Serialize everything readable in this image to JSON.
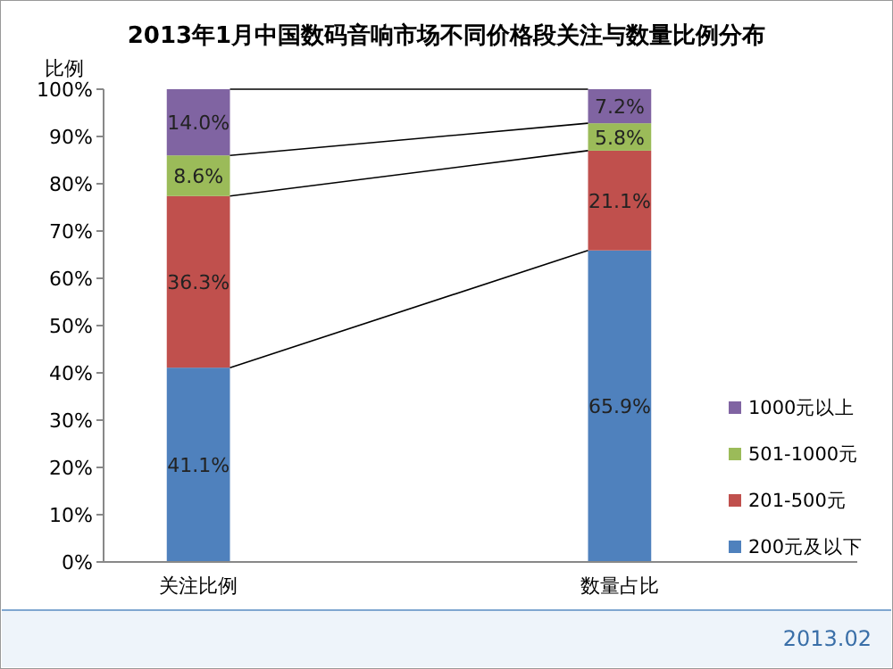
{
  "chart_data": {
    "type": "bar",
    "stacked": true,
    "title": "2013年1月中国数码音响市场不同价格段关注与数量比例分布",
    "ylabel": "比例",
    "categories": [
      "关注比例",
      "数量占比"
    ],
    "series": [
      {
        "name": "200元及以下",
        "color": "#4f81bd",
        "values": [
          41.1,
          65.9
        ],
        "value_labels": [
          "41.1%",
          "65.9%"
        ]
      },
      {
        "name": "201-500元",
        "color": "#c0504d",
        "values": [
          36.3,
          21.1
        ],
        "value_labels": [
          "36.3%",
          "21.1%"
        ]
      },
      {
        "name": "501-1000元",
        "color": "#9bbb59",
        "values": [
          8.6,
          5.8
        ],
        "value_labels": [
          "8.6%",
          "5.8%"
        ]
      },
      {
        "name": "1000元以上",
        "color": "#8064a2",
        "values": [
          14.0,
          7.2
        ],
        "value_labels": [
          "14.0%",
          "7.2%"
        ]
      }
    ],
    "ylim": [
      0,
      100
    ],
    "yticks": [
      {
        "value": 0,
        "label": "0%"
      },
      {
        "value": 10,
        "label": "10%"
      },
      {
        "value": 20,
        "label": "20%"
      },
      {
        "value": 30,
        "label": "30%"
      },
      {
        "value": 40,
        "label": "40%"
      },
      {
        "value": 50,
        "label": "50%"
      },
      {
        "value": 60,
        "label": "60%"
      },
      {
        "value": 70,
        "label": "70%"
      },
      {
        "value": 80,
        "label": "80%"
      },
      {
        "value": 90,
        "label": "90%"
      },
      {
        "value": 100,
        "label": "100%"
      }
    ],
    "grid": false,
    "legend": "right",
    "annotations": [
      "2013.02"
    ]
  }
}
